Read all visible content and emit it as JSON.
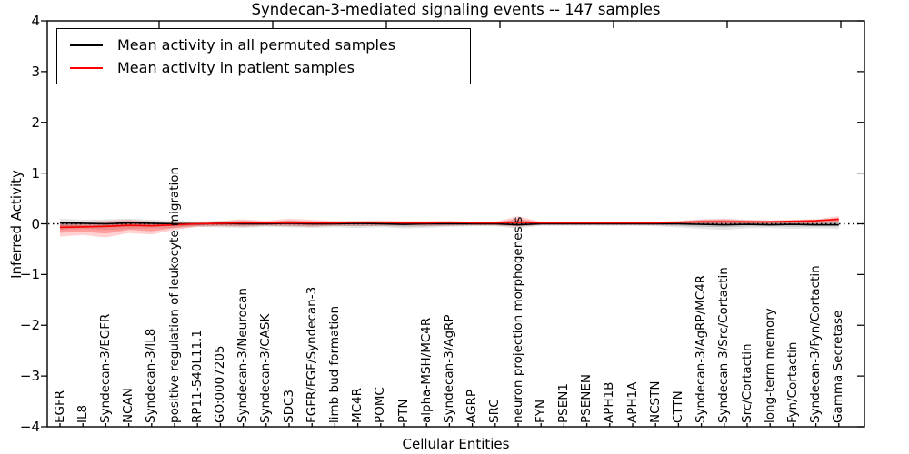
{
  "title": "Syndecan-3-mediated signaling events -- 147 samples",
  "axes": {
    "ylabel": "Inferred Activity",
    "xlabel": "Cellular Entities",
    "yticks": [
      "4",
      "3",
      "2",
      "1",
      "0",
      "−1",
      "−2",
      "−3",
      "−4"
    ],
    "ylim": [
      -4,
      4
    ]
  },
  "legend": {
    "entries": [
      {
        "label": "Mean activity in all permuted samples",
        "color": "#000000"
      },
      {
        "label": "Mean activity in patient samples",
        "color": "#ff0000"
      }
    ],
    "position": "upper left"
  },
  "colors": {
    "background": "#ffffff",
    "axis": "#000000",
    "patient_line": "#ff0000",
    "permuted_line": "#000000",
    "patient_band": "#ff0000",
    "permuted_band": "#000000"
  },
  "chart_data": {
    "type": "line",
    "title": "Syndecan-3-mediated signaling events -- 147 samples",
    "xlabel": "Cellular Entities",
    "ylabel": "Inferred Activity",
    "ylim": [
      -4,
      4
    ],
    "grid": false,
    "legend_position": "upper left",
    "zero_reference_line": {
      "y": 0,
      "style": "dotted",
      "color": "#000000"
    },
    "categories": [
      "EGFR",
      "IL8",
      "Syndecan-3/EGFR",
      "NCAN",
      "Syndecan-3/IL8",
      "positive regulation of leukocyte migration",
      "RP11-540L11.1",
      "GO:0007205",
      "Syndecan-3/Neurocan",
      "Syndecan-3/CASK",
      "SDC3",
      "FGFR/FGF/Syndecan-3",
      "limb bud formation",
      "MC4R",
      "POMC",
      "PTN",
      "alpha-MSH/MC4R",
      "Syndecan-3/AgRP",
      "AGRP",
      "SRC",
      "neuron projection morphogenesis",
      "FYN",
      "PSEN1",
      "PSENEN",
      "APH1B",
      "APH1A",
      "NCSTN",
      "CTTN",
      "Syndecan-3/AgRP/MC4R",
      "Syndecan-3/Src/Cortactin",
      "Src/Cortactin",
      "long-term memory",
      "Fyn/Cortactin",
      "Syndecan-3/Fyn/Cortactin",
      "Gamma Secretase"
    ],
    "series": [
      {
        "name": "Mean activity in all permuted samples",
        "color": "#000000",
        "values": [
          0.02,
          0.01,
          0.0,
          0.02,
          0.01,
          0.0,
          0.0,
          0.01,
          0.0,
          0.0,
          0.01,
          0.0,
          0.0,
          0.01,
          0.0,
          -0.01,
          0.0,
          0.0,
          0.0,
          0.0,
          -0.02,
          0.0,
          0.0,
          0.0,
          0.0,
          0.0,
          0.0,
          0.0,
          -0.01,
          -0.02,
          -0.01,
          -0.02,
          -0.01,
          -0.02,
          -0.02
        ]
      },
      {
        "name": "Mean activity in patient samples",
        "color": "#ff0000",
        "values": [
          -0.07,
          -0.06,
          -0.05,
          -0.03,
          -0.04,
          -0.02,
          0.0,
          0.01,
          0.02,
          0.02,
          0.02,
          0.02,
          0.02,
          0.03,
          0.03,
          0.02,
          0.02,
          0.03,
          0.02,
          0.02,
          0.03,
          0.02,
          0.02,
          0.02,
          0.02,
          0.02,
          0.02,
          0.03,
          0.04,
          0.04,
          0.04,
          0.04,
          0.05,
          0.06,
          0.09
        ]
      }
    ],
    "bands": [
      {
        "name": "permuted-samples-range",
        "color": "#000000",
        "opacity": 0.1,
        "upper": [
          0.1,
          0.08,
          0.09,
          0.1,
          0.08,
          0.06,
          0.05,
          0.06,
          0.07,
          0.05,
          0.06,
          0.05,
          0.06,
          0.05,
          0.05,
          0.05,
          0.05,
          0.05,
          0.04,
          0.04,
          0.08,
          0.03,
          0.03,
          0.03,
          0.03,
          0.03,
          0.04,
          0.05,
          0.08,
          0.09,
          0.07,
          0.06,
          0.07,
          0.07,
          0.1
        ],
        "lower": [
          -0.12,
          -0.1,
          -0.12,
          -0.1,
          -0.09,
          -0.08,
          -0.06,
          -0.07,
          -0.08,
          -0.06,
          -0.07,
          -0.08,
          -0.07,
          -0.08,
          -0.07,
          -0.09,
          -0.08,
          -0.06,
          -0.05,
          -0.05,
          -0.09,
          -0.04,
          -0.04,
          -0.04,
          -0.04,
          -0.04,
          -0.05,
          -0.07,
          -0.1,
          -0.12,
          -0.09,
          -0.08,
          -0.1,
          -0.09,
          -0.1
        ]
      },
      {
        "name": "patient-samples-range",
        "color": "#ff0000",
        "opacity": 0.18,
        "upper": [
          0.05,
          0.04,
          0.06,
          0.08,
          0.05,
          0.04,
          0.03,
          0.05,
          0.09,
          0.06,
          0.1,
          0.08,
          0.05,
          0.06,
          0.07,
          0.05,
          0.05,
          0.06,
          0.04,
          0.04,
          0.15,
          0.04,
          0.04,
          0.04,
          0.04,
          0.04,
          0.04,
          0.06,
          0.09,
          0.1,
          0.08,
          0.07,
          0.08,
          0.09,
          0.15
        ],
        "lower": [
          -0.25,
          -0.22,
          -0.27,
          -0.18,
          -0.21,
          -0.12,
          -0.06,
          -0.05,
          -0.06,
          -0.04,
          -0.05,
          -0.06,
          -0.04,
          -0.04,
          -0.04,
          -0.03,
          -0.04,
          -0.04,
          -0.03,
          -0.03,
          -0.06,
          -0.02,
          -0.02,
          -0.02,
          -0.02,
          -0.02,
          -0.02,
          -0.02,
          -0.01,
          -0.01,
          -0.01,
          -0.01,
          0.0,
          0.0,
          0.02
        ]
      }
    ]
  }
}
